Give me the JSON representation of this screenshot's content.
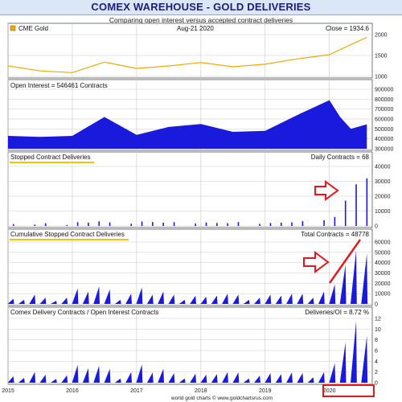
{
  "header": {
    "title": "COMEX WAREHOUSE - GOLD DELIVERIES",
    "subtitle": "Comparing open interest versus accepted contract deliveries",
    "footer": "world gold charts © www.goldchartsrus.com"
  },
  "colors": {
    "price_line": "#f2a900",
    "bars": "#1a1adc",
    "highlight": "#e8141c",
    "underline": "#f5c400",
    "grid": "#c8c8c8"
  },
  "chart_data": [
    {
      "type": "line",
      "name": "CME Gold",
      "legend": "CME Gold",
      "date_label": "Aug-21  2020",
      "value_label": "Close = 1934.6",
      "x_range": [
        "2015-01",
        "2020-08"
      ],
      "ylim": [
        1000,
        2000
      ],
      "yticks": [
        "1000",
        "1500",
        "2000"
      ],
      "x": [
        "2015-01",
        "2015-07",
        "2016-01",
        "2016-07",
        "2017-01",
        "2017-07",
        "2018-01",
        "2018-07",
        "2019-01",
        "2019-07",
        "2020-01",
        "2020-04",
        "2020-08"
      ],
      "values": [
        1250,
        1130,
        1090,
        1340,
        1190,
        1250,
        1330,
        1230,
        1290,
        1420,
        1520,
        1700,
        1935
      ]
    },
    {
      "type": "area",
      "label": "Open Interest = 546461 Contracts",
      "ylim": [
        300000,
        900000
      ],
      "yticks": [
        "300000",
        "400000",
        "500000",
        "600000",
        "700000",
        "800000",
        "900000"
      ],
      "x": [
        "2015-01",
        "2015-07",
        "2016-01",
        "2016-07",
        "2017-01",
        "2017-07",
        "2018-01",
        "2018-07",
        "2019-01",
        "2019-07",
        "2020-01",
        "2020-03",
        "2020-05",
        "2020-08"
      ],
      "values": [
        430000,
        420000,
        430000,
        620000,
        440000,
        520000,
        550000,
        470000,
        480000,
        640000,
        790000,
        620000,
        500000,
        546461
      ]
    },
    {
      "type": "bar",
      "label": "Stopped Contract Deliveries",
      "value_label": "Daily Contracts = 68",
      "ylim": [
        0,
        40000
      ],
      "yticks": [
        "0",
        "10000",
        "20000",
        "30000",
        "40000"
      ],
      "x": [
        "2015-02",
        "2015-06",
        "2015-08",
        "2015-12",
        "2016-02",
        "2016-04",
        "2016-06",
        "2016-08",
        "2016-12",
        "2017-02",
        "2017-04",
        "2017-06",
        "2017-08",
        "2017-12",
        "2018-02",
        "2018-04",
        "2018-06",
        "2018-08",
        "2018-12",
        "2019-02",
        "2019-04",
        "2019-06",
        "2019-08",
        "2019-12",
        "2020-02",
        "2020-04",
        "2020-06",
        "2020-08"
      ],
      "values": [
        1200,
        900,
        1800,
        700,
        2500,
        2200,
        3100,
        2400,
        1500,
        3000,
        2600,
        2200,
        2500,
        1600,
        2300,
        2000,
        1800,
        2600,
        1400,
        2000,
        2200,
        2400,
        3200,
        3800,
        6000,
        17000,
        28000,
        32000
      ]
    },
    {
      "type": "area",
      "label": "Cumulative Stopped Contract Deliveries",
      "value_label": "Total Contracts = 48778",
      "ylim": [
        0,
        60000
      ],
      "yticks": [
        "0",
        "10000",
        "20000",
        "30000",
        "40000",
        "50000",
        "60000"
      ],
      "x": [
        "2015-02",
        "2015-04",
        "2015-06",
        "2015-08",
        "2015-10",
        "2015-12",
        "2016-02",
        "2016-04",
        "2016-06",
        "2016-08",
        "2016-10",
        "2016-12",
        "2017-02",
        "2017-04",
        "2017-06",
        "2017-08",
        "2017-10",
        "2017-12",
        "2018-02",
        "2018-04",
        "2018-06",
        "2018-08",
        "2018-10",
        "2018-12",
        "2019-02",
        "2019-04",
        "2019-06",
        "2019-08",
        "2019-10",
        "2019-12",
        "2020-02",
        "2020-04",
        "2020-06",
        "2020-08"
      ],
      "values": [
        5000,
        4000,
        9000,
        6000,
        3000,
        6000,
        15000,
        12000,
        17000,
        14000,
        4000,
        10000,
        16000,
        9000,
        12000,
        9000,
        4000,
        8000,
        7000,
        8000,
        10000,
        9000,
        4000,
        6000,
        9000,
        8000,
        10000,
        10000,
        6000,
        12000,
        19000,
        38000,
        52000,
        48778
      ]
    },
    {
      "type": "area",
      "label": "Comex Delivery Contracts / Open Interest Contracts",
      "value_label": "Deliveries/OI = 8.72 %",
      "ylim": [
        0,
        12
      ],
      "yticks": [
        "0",
        "2",
        "4",
        "6",
        "8",
        "10",
        "12"
      ],
      "x": [
        "2015-02",
        "2015-04",
        "2015-06",
        "2015-08",
        "2015-10",
        "2015-12",
        "2016-02",
        "2016-04",
        "2016-06",
        "2016-08",
        "2016-10",
        "2016-12",
        "2017-02",
        "2017-04",
        "2017-06",
        "2017-08",
        "2017-10",
        "2017-12",
        "2018-02",
        "2018-04",
        "2018-06",
        "2018-08",
        "2018-10",
        "2018-12",
        "2019-02",
        "2019-04",
        "2019-06",
        "2019-08",
        "2019-10",
        "2019-12",
        "2020-02",
        "2020-04",
        "2020-06",
        "2020-08"
      ],
      "values": [
        1.2,
        0.9,
        2.0,
        1.5,
        0.7,
        1.4,
        3.3,
        2.7,
        3.2,
        2.6,
        0.8,
        2.0,
        3.4,
        1.9,
        2.6,
        1.8,
        0.8,
        1.7,
        1.5,
        1.6,
        2.0,
        1.9,
        0.8,
        1.3,
        1.8,
        1.6,
        1.9,
        1.8,
        1.0,
        2.0,
        3.6,
        7.5,
        11.5,
        8.72
      ]
    }
  ],
  "x_axis": {
    "labels": [
      "2015",
      "2016",
      "2017",
      "2018",
      "2019",
      "2020"
    ],
    "domain": [
      "2015-01",
      "2020-09"
    ]
  }
}
